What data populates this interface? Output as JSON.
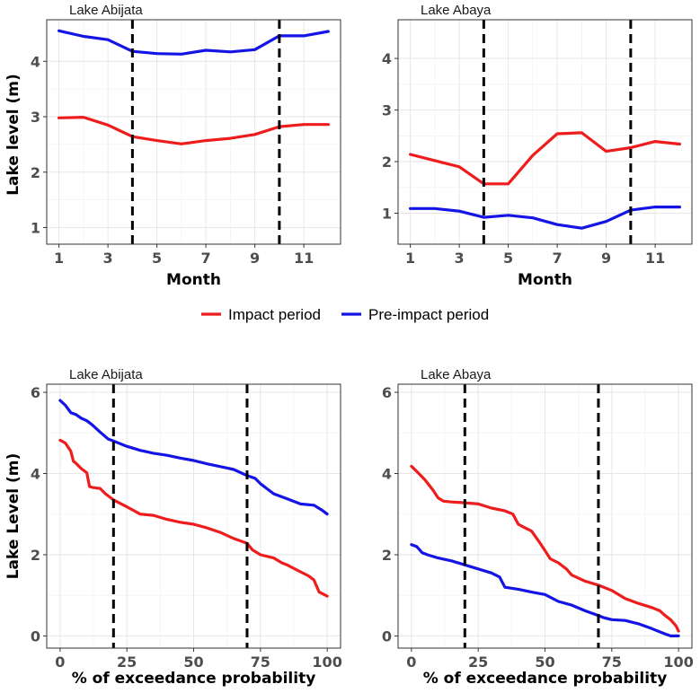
{
  "colors": {
    "impact": "#ee1c1c",
    "pre_impact": "#1414e6"
  },
  "legend": {
    "items": [
      {
        "label": "Impact period",
        "color": "#ee1c1c"
      },
      {
        "label": "Pre-impact period",
        "color": "#1414e6"
      }
    ]
  },
  "top_row": {
    "ylabel": "Lake level (m)",
    "xlabel": "Month"
  },
  "bottom_row": {
    "ylabel": "Lake Level (m)",
    "xlabel": "% of exceedance probability"
  },
  "chart_data": [
    {
      "type": "line",
      "title": "Lake Abijata",
      "xlabel": "Month",
      "ylabel": "Lake level (m)",
      "xlim": [
        0.5,
        12.5
      ],
      "ylim": [
        0.7,
        4.75
      ],
      "xticks": [
        1,
        3,
        5,
        7,
        9,
        11
      ],
      "yticks": [
        1,
        2,
        3,
        4
      ],
      "vlines": [
        4,
        10
      ],
      "grid": true,
      "x": [
        1,
        2,
        3,
        4,
        5,
        6,
        7,
        8,
        9,
        10,
        11,
        12
      ],
      "series": [
        {
          "name": "Impact period",
          "color": "#ee1c1c",
          "values": [
            2.98,
            2.99,
            2.85,
            2.64,
            2.57,
            2.51,
            2.57,
            2.61,
            2.68,
            2.82,
            2.86,
            2.86
          ]
        },
        {
          "name": "Pre-impact period",
          "color": "#1414e6",
          "values": [
            4.55,
            4.45,
            4.39,
            4.18,
            4.14,
            4.13,
            4.2,
            4.17,
            4.21,
            4.46,
            4.46,
            4.54
          ]
        }
      ]
    },
    {
      "type": "line",
      "title": "Lake Abaya",
      "xlabel": "Month",
      "ylabel": "Lake level (m)",
      "xlim": [
        0.5,
        12.5
      ],
      "ylim": [
        0.4,
        4.75
      ],
      "xticks": [
        1,
        3,
        5,
        7,
        9,
        11
      ],
      "yticks": [
        1,
        2,
        3,
        4
      ],
      "vlines": [
        4,
        10
      ],
      "grid": true,
      "x": [
        1,
        2,
        3,
        4,
        5,
        6,
        7,
        8,
        9,
        10,
        11,
        12
      ],
      "series": [
        {
          "name": "Impact period",
          "color": "#ee1c1c",
          "values": [
            2.14,
            2.02,
            1.9,
            1.57,
            1.57,
            2.12,
            2.54,
            2.56,
            2.2,
            2.27,
            2.39,
            2.34
          ]
        },
        {
          "name": "Pre-impact period",
          "color": "#1414e6",
          "values": [
            1.09,
            1.09,
            1.04,
            0.92,
            0.96,
            0.91,
            0.78,
            0.71,
            0.84,
            1.06,
            1.12,
            1.12
          ]
        }
      ]
    },
    {
      "type": "line",
      "title": "Lake Abijata",
      "xlabel": "% of exceedance probability",
      "ylabel": "Lake Level (m)",
      "xlim": [
        -5,
        105
      ],
      "ylim": [
        -0.3,
        6.2
      ],
      "xticks": [
        0,
        25,
        50,
        75,
        100
      ],
      "yticks": [
        0,
        2,
        4,
        6
      ],
      "vlines": [
        20,
        70
      ],
      "grid": true,
      "series": [
        {
          "name": "Impact period",
          "color": "#ee1c1c",
          "x": [
            0,
            2,
            4,
            5,
            6,
            8,
            10,
            11,
            12,
            15,
            17,
            20,
            25,
            30,
            35,
            40,
            45,
            50,
            55,
            60,
            65,
            70,
            72,
            75,
            80,
            83,
            85,
            90,
            93,
            95,
            97,
            100
          ],
          "y": [
            4.82,
            4.75,
            4.55,
            4.3,
            4.25,
            4.12,
            4.02,
            3.68,
            3.66,
            3.63,
            3.5,
            3.35,
            3.18,
            3.0,
            2.97,
            2.87,
            2.8,
            2.75,
            2.66,
            2.55,
            2.4,
            2.28,
            2.12,
            2.0,
            1.92,
            1.8,
            1.75,
            1.58,
            1.48,
            1.38,
            1.08,
            0.98
          ]
        },
        {
          "name": "Pre-impact period",
          "color": "#1414e6",
          "x": [
            0,
            2,
            4,
            6,
            8,
            10,
            12,
            15,
            18,
            20,
            25,
            30,
            35,
            40,
            45,
            50,
            55,
            60,
            65,
            70,
            73,
            75,
            78,
            80,
            85,
            90,
            95,
            98,
            100
          ],
          "y": [
            5.8,
            5.68,
            5.5,
            5.45,
            5.36,
            5.3,
            5.2,
            5.02,
            4.85,
            4.8,
            4.67,
            4.57,
            4.5,
            4.45,
            4.38,
            4.32,
            4.24,
            4.17,
            4.1,
            3.95,
            3.88,
            3.75,
            3.6,
            3.5,
            3.38,
            3.25,
            3.22,
            3.1,
            3.0
          ]
        }
      ]
    },
    {
      "type": "line",
      "title": "Lake Abaya",
      "xlabel": "% of exceedance probability",
      "ylabel": "Lake Level (m)",
      "xlim": [
        -5,
        105
      ],
      "ylim": [
        -0.3,
        6.2
      ],
      "xticks": [
        0,
        25,
        50,
        75,
        100
      ],
      "yticks": [
        0,
        2,
        4,
        6
      ],
      "vlines": [
        20,
        70
      ],
      "grid": true,
      "series": [
        {
          "name": "Impact period",
          "color": "#ee1c1c",
          "x": [
            0,
            2,
            5,
            8,
            10,
            12,
            15,
            20,
            25,
            30,
            35,
            38,
            40,
            42,
            45,
            48,
            50,
            52,
            55,
            58,
            60,
            65,
            70,
            75,
            80,
            85,
            90,
            93,
            95,
            97,
            99,
            100
          ],
          "y": [
            4.18,
            4.05,
            3.85,
            3.6,
            3.4,
            3.32,
            3.3,
            3.28,
            3.25,
            3.15,
            3.08,
            3.0,
            2.75,
            2.68,
            2.58,
            2.3,
            2.1,
            1.9,
            1.8,
            1.65,
            1.5,
            1.35,
            1.25,
            1.12,
            0.92,
            0.8,
            0.7,
            0.62,
            0.5,
            0.4,
            0.25,
            0.12
          ]
        },
        {
          "name": "Pre-impact period",
          "color": "#1414e6",
          "x": [
            0,
            2,
            4,
            6,
            10,
            15,
            20,
            25,
            30,
            33,
            35,
            40,
            45,
            50,
            55,
            60,
            65,
            70,
            72,
            75,
            80,
            85,
            90,
            93,
            95,
            97,
            100
          ],
          "y": [
            2.25,
            2.2,
            2.05,
            2.0,
            1.92,
            1.85,
            1.75,
            1.65,
            1.55,
            1.45,
            1.2,
            1.15,
            1.08,
            1.02,
            0.85,
            0.76,
            0.62,
            0.5,
            0.45,
            0.4,
            0.38,
            0.3,
            0.18,
            0.1,
            0.05,
            0.0,
            0.0
          ]
        }
      ]
    }
  ]
}
